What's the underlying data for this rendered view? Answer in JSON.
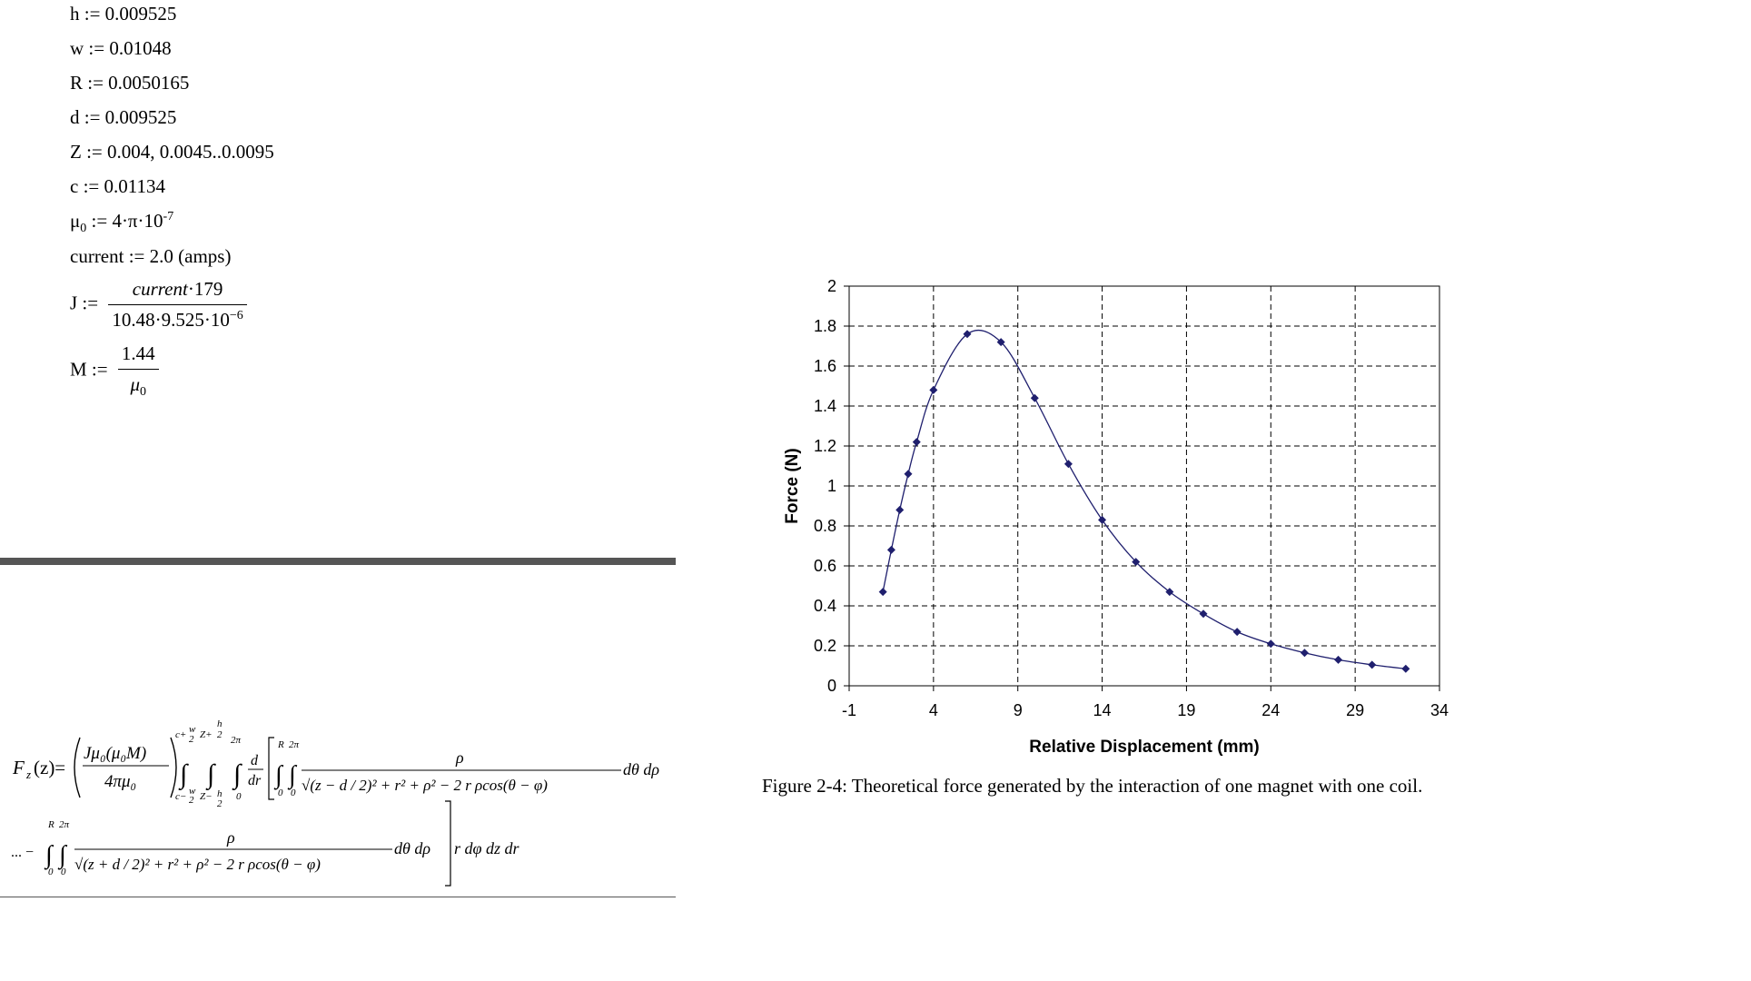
{
  "definitions": {
    "h": "h := 0.009525",
    "w": "w := 0.01048",
    "R": "R := 0.0050165",
    "d": "d := 0.009525",
    "Z": "Z := 0.004, 0.0045..0.0095",
    "c": "c := 0.01134",
    "mu0_base": "μ",
    "mu0_sub": "0",
    "mu0_rest": " := 4·π·10",
    "mu0_exp": "-7",
    "current": "current := 2.0 (amps)",
    "J_label": "J :=",
    "J_num_var": "current",
    "J_num_rest": "·179",
    "J_den_base": "10.48·9.525·10",
    "J_den_exp": "−6",
    "M_label": "M :=",
    "M_num": "1.44",
    "M_den": "μ",
    "M_den_sub": "0"
  },
  "equation": {
    "lhs": "F",
    "lhs_sub": "z",
    "lhs_arg": "(z)=",
    "pref_num": "Jμ₀(μ₀M)",
    "pref_den": "4πμ₀",
    "lim_outer_top": "c+",
    "lim_w": "w",
    "lim_2": "2",
    "lim_z": "Z+",
    "lim_h": "h",
    "lim_outer_bot": "c−",
    "lim_zb": "Z−",
    "lim_2pi": "2π",
    "lim_0": "0",
    "lim_R": "R",
    "deriv_d": "d",
    "deriv_dr": "dr",
    "rho": "ρ",
    "den1": "√(z − d / 2)² + r² + ρ² − 2 r ρcos(θ − φ)",
    "diff1": "dθ dρ",
    "cont": "... −",
    "den2": "√(z + d / 2)² + r² + ρ² − 2 r ρcos(θ − φ)",
    "diff2": "dθ dρ",
    "tail": "r dφ dz dr"
  },
  "caption": "Figure 2-4: Theoretical force generated by the interaction of one magnet with one coil.",
  "chart_data": {
    "type": "scatter",
    "xlabel": "Relative Displacement (mm)",
    "ylabel": "Force (N)",
    "xlim": [
      -1,
      34
    ],
    "ylim": [
      0,
      2
    ],
    "xticks": [
      -1,
      4,
      9,
      14,
      19,
      24,
      29,
      34
    ],
    "yticks": [
      0,
      0.2,
      0.4,
      0.6,
      0.8,
      1,
      1.2,
      1.4,
      1.6,
      1.8,
      2
    ],
    "xtick_labels": [
      "-1",
      "4",
      "9",
      "14",
      "19",
      "24",
      "29",
      "34"
    ],
    "ytick_labels": [
      "0",
      "0.2",
      "0.4",
      "0.6",
      "0.8",
      "1",
      "1.2",
      "1.4",
      "1.6",
      "1.8",
      "2"
    ],
    "grid": "dashed",
    "smooth_line": true,
    "series": [
      {
        "color": "#1f1f6e",
        "points": [
          [
            1,
            0.47
          ],
          [
            1.5,
            0.68
          ],
          [
            2,
            0.88
          ],
          [
            2.5,
            1.06
          ],
          [
            3,
            1.22
          ],
          [
            4,
            1.48
          ],
          [
            6,
            1.76
          ],
          [
            8,
            1.72
          ],
          [
            10,
            1.44
          ],
          [
            12,
            1.11
          ],
          [
            14,
            0.83
          ],
          [
            16,
            0.62
          ],
          [
            18,
            0.47
          ],
          [
            20,
            0.36
          ],
          [
            22,
            0.27
          ],
          [
            24,
            0.21
          ],
          [
            26,
            0.165
          ],
          [
            28,
            0.13
          ],
          [
            30,
            0.105
          ],
          [
            32,
            0.085
          ]
        ]
      }
    ]
  }
}
